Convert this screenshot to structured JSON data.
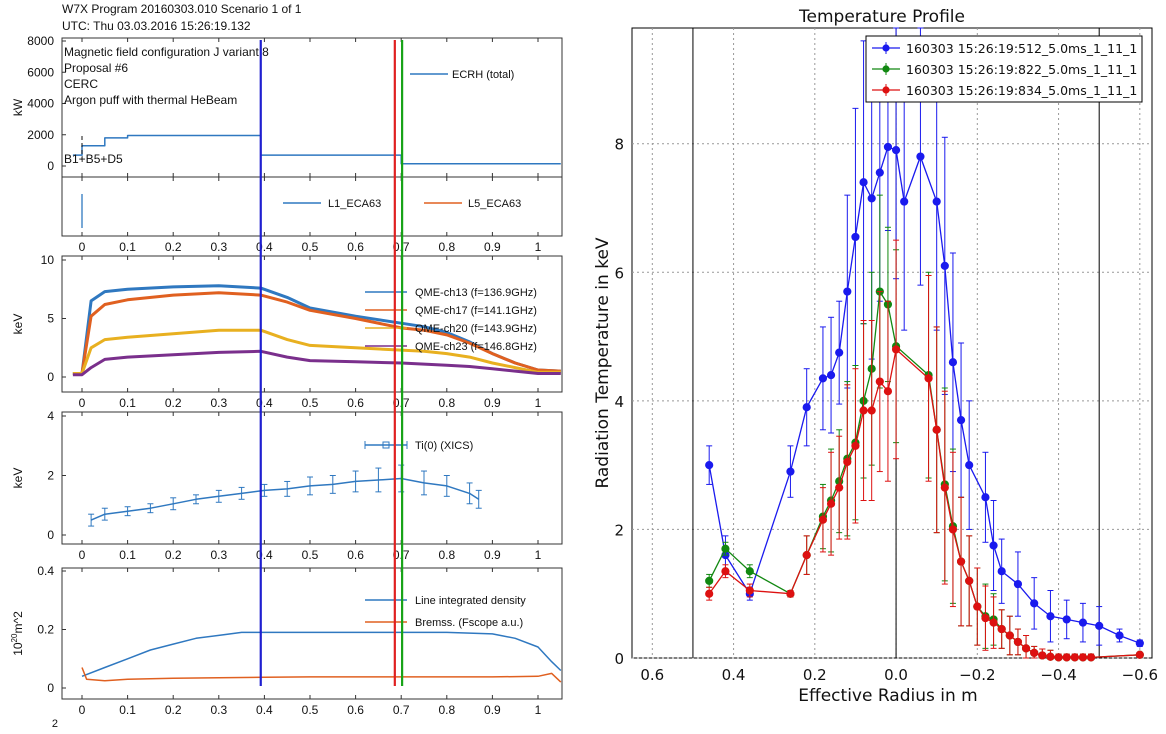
{
  "header": {
    "line1": "W7X Program 20160303.010 Scenario 1 of 1",
    "line2": "UTC: Thu 03.03.2016 15:26:19.132"
  },
  "left_panel": {
    "x_ticks": [
      "0",
      "0.1",
      "0.2",
      "0.3",
      "0.4",
      "0.5",
      "0.6",
      "0.7",
      "0.8",
      "0.9",
      "1"
    ],
    "markers": [
      {
        "t": 0.392,
        "color": "#1f1fd0"
      },
      {
        "t": 0.686,
        "color": "#e02020"
      },
      {
        "t": 0.702,
        "color": "#17a317"
      }
    ]
  },
  "chart_data": [
    {
      "type": "line",
      "ylabel": "kW",
      "ylim": [
        0,
        8000
      ],
      "yticks": [
        "0",
        "2000",
        "4000",
        "6000",
        "8000"
      ],
      "annotations": [
        "Magnetic field configuration J variant 8",
        "Proposal #6",
        "CERC",
        "Argon puff with thermal HeBeam",
        "B1+B5+D5"
      ],
      "series": [
        {
          "name": "ECRH (total)",
          "color": "#2f78c0",
          "x": [
            -0.02,
            0.0,
            0.0,
            0.05,
            0.05,
            0.1,
            0.1,
            0.392,
            0.392,
            0.7,
            0.7,
            1.05
          ],
          "y": [
            700,
            700,
            1300,
            1300,
            1800,
            1800,
            1950,
            1950,
            700,
            700,
            150,
            150
          ]
        }
      ]
    },
    {
      "type": "line",
      "ylabel": "",
      "series": [
        {
          "name": "L1_ECA63",
          "color": "#2f78c0"
        },
        {
          "name": "L5_ECA63",
          "color": "#e06020"
        }
      ]
    },
    {
      "type": "line",
      "ylabel": "keV",
      "ylim": [
        0,
        10
      ],
      "yticks": [
        "0",
        "5",
        "10"
      ],
      "series": [
        {
          "name": "QME-ch13 (f=136.9GHz)",
          "color": "#2f78c0",
          "x": [
            -0.02,
            0.0,
            0.02,
            0.05,
            0.1,
            0.2,
            0.3,
            0.392,
            0.45,
            0.5,
            0.6,
            0.7,
            0.75,
            0.8,
            0.85,
            0.9,
            0.95,
            1.0,
            1.05
          ],
          "y": [
            0.3,
            0.3,
            6.5,
            7.3,
            7.5,
            7.7,
            7.8,
            7.6,
            6.8,
            5.9,
            5.2,
            4.6,
            4.3,
            3.8,
            3.0,
            2.0,
            1.2,
            0.6,
            0.5
          ]
        },
        {
          "name": "QME-ch17 (f=141.1GHz)",
          "color": "#e06020",
          "x": [
            -0.02,
            0.0,
            0.02,
            0.05,
            0.1,
            0.2,
            0.3,
            0.392,
            0.45,
            0.5,
            0.6,
            0.7,
            0.75,
            0.8,
            0.85,
            0.9,
            0.95,
            1.0,
            1.05
          ],
          "y": [
            0.3,
            0.3,
            5.2,
            6.2,
            6.6,
            7.0,
            7.2,
            7.0,
            6.4,
            5.7,
            5.0,
            4.2,
            4.0,
            3.6,
            2.9,
            2.0,
            1.2,
            0.6,
            0.5
          ]
        },
        {
          "name": "QME-ch20 (f=143.9GHz)",
          "color": "#e8b020",
          "x": [
            -0.02,
            0.0,
            0.02,
            0.05,
            0.1,
            0.2,
            0.3,
            0.392,
            0.45,
            0.5,
            0.6,
            0.7,
            0.75,
            0.8,
            0.85,
            0.9,
            0.95,
            1.0,
            1.05
          ],
          "y": [
            0.3,
            0.3,
            2.5,
            3.2,
            3.4,
            3.7,
            4.0,
            4.0,
            3.2,
            2.7,
            2.5,
            2.3,
            2.2,
            2.0,
            1.7,
            1.2,
            0.8,
            0.4,
            0.4
          ]
        },
        {
          "name": "QME-ch23 (f=146.8GHz)",
          "color": "#7a2f8c",
          "x": [
            -0.02,
            0.0,
            0.02,
            0.05,
            0.1,
            0.2,
            0.3,
            0.392,
            0.45,
            0.5,
            0.6,
            0.7,
            0.75,
            0.8,
            0.85,
            0.9,
            0.95,
            1.0,
            1.05
          ],
          "y": [
            0.2,
            0.2,
            0.8,
            1.5,
            1.7,
            1.9,
            2.1,
            2.2,
            1.7,
            1.4,
            1.3,
            1.2,
            1.1,
            1.0,
            0.9,
            0.7,
            0.5,
            0.3,
            0.3
          ]
        }
      ]
    },
    {
      "type": "scatter",
      "ylabel": "keV",
      "ylim": [
        0,
        4
      ],
      "yticks": [
        "0",
        "2",
        "4"
      ],
      "series": [
        {
          "name": "Ti(0) (XICS)",
          "color": "#2f78c0",
          "x": [
            0.02,
            0.05,
            0.1,
            0.15,
            0.2,
            0.25,
            0.3,
            0.35,
            0.4,
            0.45,
            0.5,
            0.55,
            0.6,
            0.65,
            0.7,
            0.75,
            0.8,
            0.85,
            0.87
          ],
          "y": [
            0.5,
            0.7,
            0.8,
            0.9,
            1.05,
            1.2,
            1.3,
            1.4,
            1.5,
            1.55,
            1.65,
            1.7,
            1.8,
            1.85,
            1.9,
            1.75,
            1.65,
            1.4,
            1.2
          ],
          "err": [
            0.2,
            0.2,
            0.15,
            0.15,
            0.2,
            0.15,
            0.2,
            0.2,
            0.2,
            0.25,
            0.3,
            0.3,
            0.35,
            0.4,
            0.45,
            0.4,
            0.35,
            0.35,
            0.3
          ]
        }
      ]
    },
    {
      "type": "line",
      "ylabel": "10^{20}m^-2",
      "ylim": [
        0,
        0.4
      ],
      "yticks": [
        "0",
        "0.2",
        "0.4"
      ],
      "series": [
        {
          "name": "Line integrated density",
          "color": "#2f78c0",
          "x": [
            0.0,
            0.05,
            0.1,
            0.15,
            0.2,
            0.25,
            0.3,
            0.35,
            0.392,
            0.5,
            0.6,
            0.7,
            0.8,
            0.9,
            0.95,
            1.0,
            1.03,
            1.05
          ],
          "y": [
            0.04,
            0.07,
            0.1,
            0.13,
            0.15,
            0.17,
            0.18,
            0.19,
            0.19,
            0.19,
            0.19,
            0.19,
            0.19,
            0.185,
            0.17,
            0.14,
            0.09,
            0.06
          ]
        },
        {
          "name": "Bremss. (Fscope a.u.)",
          "color": "#e06020",
          "x": [
            0.0,
            0.01,
            0.05,
            0.1,
            0.2,
            0.3,
            0.4,
            0.5,
            0.6,
            0.7,
            0.8,
            0.9,
            1.0,
            1.03,
            1.05
          ],
          "y": [
            0.07,
            0.03,
            0.025,
            0.03,
            0.033,
            0.035,
            0.037,
            0.038,
            0.038,
            0.038,
            0.038,
            0.038,
            0.04,
            0.05,
            0.02
          ]
        }
      ]
    },
    {
      "type": "line",
      "title": "Temperature Profile",
      "xlabel": "Effective Radius in m",
      "ylabel": "Radiation Temperature in keV",
      "xlim": [
        0.65,
        -0.63
      ],
      "ylim": [
        0,
        9.8
      ],
      "xticks": [
        "0.6",
        "0.4",
        "0.2",
        "0.0",
        "−0.2",
        "−0.4",
        "−0.6"
      ],
      "yticks": [
        "0",
        "2",
        "4",
        "6",
        "8"
      ],
      "grid": true,
      "legend": "top-right",
      "series": [
        {
          "name": "160303 15:26:19:512_5.0ms_1_11_1",
          "color": "#1a1aee",
          "x": [
            0.46,
            0.42,
            0.36,
            0.26,
            0.22,
            0.18,
            0.16,
            0.14,
            0.12,
            0.1,
            0.08,
            0.06,
            0.04,
            0.02,
            0.0,
            -0.02,
            -0.06,
            -0.1,
            -0.12,
            -0.14,
            -0.16,
            -0.18,
            -0.22,
            -0.24,
            -0.26,
            -0.3,
            -0.34,
            -0.38,
            -0.42,
            -0.46,
            -0.5,
            -0.55,
            -0.6
          ],
          "y": [
            3.0,
            1.6,
            1.0,
            2.9,
            3.9,
            4.35,
            4.4,
            4.75,
            5.7,
            6.55,
            7.4,
            7.15,
            7.55,
            7.95,
            7.9,
            7.1,
            7.8,
            7.1,
            6.1,
            4.6,
            3.7,
            3.0,
            2.5,
            1.75,
            1.35,
            1.15,
            0.85,
            0.65,
            0.6,
            0.55,
            0.5,
            0.35,
            0.23
          ],
          "err": [
            0.3,
            0.3,
            0.1,
            0.4,
            0.6,
            0.8,
            0.9,
            0.8,
            1.5,
            2.0,
            2.2,
            2.5,
            2.0,
            1.3,
            2.0,
            2.0,
            2.0,
            2.0,
            2.0,
            1.7,
            1.2,
            1.0,
            0.7,
            0.7,
            0.5,
            0.5,
            0.4,
            0.4,
            0.3,
            0.3,
            0.3,
            0.1,
            0.05
          ]
        },
        {
          "name": "160303 15:26:19:822_5.0ms_1_11_1",
          "color": "#118811",
          "x": [
            0.46,
            0.42,
            0.36,
            0.26,
            0.22,
            0.18,
            0.16,
            0.14,
            0.12,
            0.1,
            0.08,
            0.06,
            0.04,
            0.02,
            0.0,
            -0.08,
            -0.1,
            -0.12,
            -0.14,
            -0.16,
            -0.18,
            -0.2,
            -0.22,
            -0.24,
            -0.26,
            -0.28,
            -0.3,
            -0.32,
            -0.34,
            -0.36,
            -0.38,
            -0.4,
            -0.42,
            -0.44,
            -0.46,
            -0.48,
            -0.6
          ],
          "y": [
            1.2,
            1.7,
            1.35,
            1.0,
            1.6,
            2.2,
            2.45,
            2.75,
            3.1,
            3.35,
            4.0,
            4.5,
            5.7,
            5.5,
            4.85,
            4.4,
            3.55,
            2.7,
            2.05,
            1.5,
            1.2,
            0.8,
            0.65,
            0.6,
            0.45,
            0.35,
            0.25,
            0.15,
            0.08,
            0.04,
            0.02,
            0.01,
            0.01,
            0.01,
            0.01,
            0.01,
            0.05
          ],
          "err": [
            0.1,
            0.1,
            0.1,
            0.05,
            0.3,
            0.5,
            0.8,
            0.8,
            1.2,
            1.2,
            1.2,
            1.5,
            1.5,
            1.2,
            1.5,
            1.6,
            1.6,
            1.5,
            1.2,
            1.0,
            0.7,
            0.6,
            0.5,
            0.4,
            0.3,
            0.3,
            0.2,
            0.2,
            0.1,
            0.1,
            0.1,
            0.05,
            0.05,
            0.05,
            0.05,
            0.05,
            0.02
          ]
        },
        {
          "name": "160303 15:26:19:834_5.0ms_1_11_1",
          "color": "#dd1111",
          "x": [
            0.46,
            0.42,
            0.36,
            0.26,
            0.22,
            0.18,
            0.16,
            0.14,
            0.12,
            0.1,
            0.08,
            0.06,
            0.04,
            0.02,
            0.0,
            -0.08,
            -0.1,
            -0.12,
            -0.14,
            -0.16,
            -0.18,
            -0.2,
            -0.22,
            -0.24,
            -0.26,
            -0.28,
            -0.3,
            -0.32,
            -0.34,
            -0.36,
            -0.38,
            -0.4,
            -0.42,
            -0.44,
            -0.46,
            -0.48,
            -0.6
          ],
          "y": [
            1.0,
            1.35,
            1.05,
            1.0,
            1.6,
            2.15,
            2.4,
            2.65,
            3.05,
            3.3,
            3.85,
            3.85,
            4.3,
            4.15,
            4.8,
            4.35,
            3.55,
            2.65,
            2.0,
            1.5,
            1.2,
            0.8,
            0.62,
            0.55,
            0.45,
            0.35,
            0.25,
            0.15,
            0.08,
            0.04,
            0.02,
            0.01,
            0.01,
            0.01,
            0.01,
            0.01,
            0.05
          ],
          "err": [
            0.1,
            0.1,
            0.1,
            0.05,
            0.3,
            0.5,
            0.8,
            0.8,
            1.2,
            1.2,
            1.4,
            1.4,
            1.4,
            1.4,
            1.7,
            1.6,
            1.6,
            1.5,
            1.2,
            1.0,
            0.7,
            0.6,
            0.5,
            0.4,
            0.3,
            0.3,
            0.2,
            0.2,
            0.1,
            0.1,
            0.1,
            0.05,
            0.05,
            0.05,
            0.05,
            0.05,
            0.02
          ]
        }
      ]
    }
  ]
}
